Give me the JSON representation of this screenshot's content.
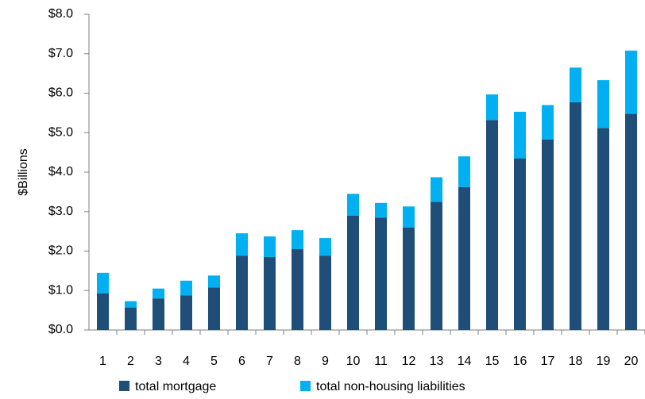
{
  "chart_data": {
    "type": "stacked_bar",
    "y_axis_label": "$Billions",
    "categories": [
      "1",
      "2",
      "3",
      "4",
      "5",
      "6",
      "7",
      "8",
      "9",
      "10",
      "11",
      "12",
      "13",
      "14",
      "15",
      "16",
      "17",
      "18",
      "19",
      "20"
    ],
    "series": [
      {
        "name": "total mortgage",
        "color": "#1f4e79",
        "values": [
          0.93,
          0.57,
          0.8,
          0.88,
          1.08,
          1.88,
          1.85,
          2.05,
          1.88,
          2.9,
          2.85,
          2.6,
          3.25,
          3.62,
          5.32,
          4.35,
          4.83,
          5.77,
          5.12,
          5.48
        ]
      },
      {
        "name": "total non-housing liabilities",
        "color": "#00b0f0",
        "values": [
          0.52,
          0.16,
          0.25,
          0.37,
          0.3,
          0.57,
          0.52,
          0.48,
          0.45,
          0.55,
          0.37,
          0.53,
          0.62,
          0.78,
          0.65,
          1.18,
          0.87,
          0.88,
          1.21,
          1.6
        ]
      }
    ],
    "ylim": [
      0,
      8
    ],
    "yticks": [
      {
        "value": 0,
        "label": "$0.0"
      },
      {
        "value": 1,
        "label": "$1.0"
      },
      {
        "value": 2,
        "label": "$2.0"
      },
      {
        "value": 3,
        "label": "$3.0"
      },
      {
        "value": 4,
        "label": "$4.0"
      },
      {
        "value": 5,
        "label": "$5.0"
      },
      {
        "value": 6,
        "label": "$6.0"
      },
      {
        "value": 7,
        "label": "$7.0"
      },
      {
        "value": 8,
        "label": "$8.0"
      }
    ],
    "grid": false,
    "legend": "bottom"
  }
}
